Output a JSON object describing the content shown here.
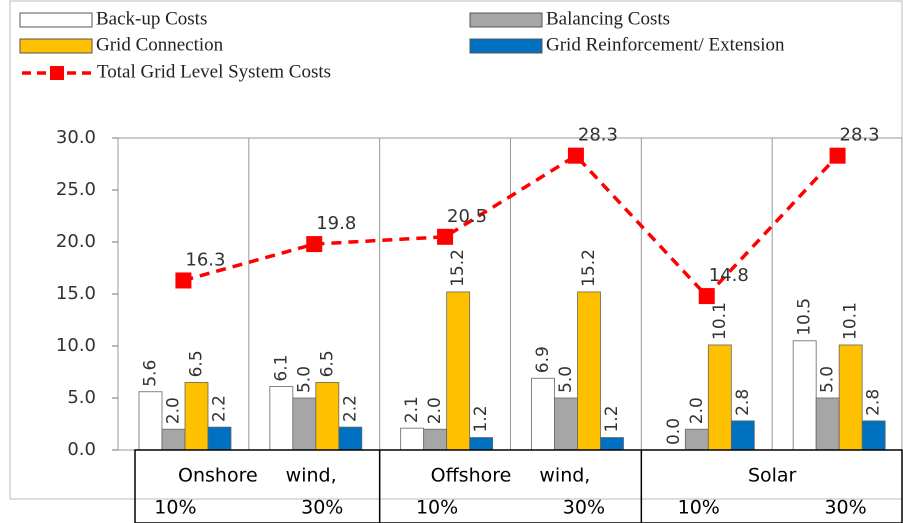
{
  "chart_data": {
    "type": "bar",
    "categories": [
      "10%",
      "30%",
      "10%",
      "30%",
      "10%",
      "30%"
    ],
    "groups": [
      "Onshore wind,",
      "Offshore wind,",
      "Solar"
    ],
    "series": [
      {
        "name": "Back-up Costs",
        "color": "#ffffff",
        "values": [
          5.6,
          6.1,
          2.1,
          6.9,
          0.0,
          10.5
        ],
        "value_labels": [
          "5.6",
          "6.1",
          "2.1",
          "6.9",
          "0.0",
          "10.5"
        ]
      },
      {
        "name": "Balancing Costs",
        "color": "#a6a6a6",
        "values": [
          2.0,
          5.0,
          2.0,
          5.0,
          2.0,
          5.0
        ],
        "value_labels": [
          "2.0",
          "5.0",
          "2.0",
          "5.0",
          "2.0",
          "5.0"
        ]
      },
      {
        "name": "Grid Connection",
        "color": "#ffc000",
        "values": [
          6.5,
          6.5,
          15.2,
          15.2,
          10.1,
          10.1
        ],
        "value_labels": [
          "6.5",
          "6.5",
          "15.2",
          "15.2",
          "10.1",
          "10.1"
        ]
      },
      {
        "name": "Grid Reinforcement/ Extension",
        "color": "#0070c0",
        "values": [
          2.2,
          2.2,
          1.2,
          1.2,
          2.8,
          2.8
        ],
        "value_labels": [
          "2.2",
          "2.2",
          "1.2",
          "1.2",
          "2.8",
          "2.8"
        ]
      },
      {
        "name": "Total Grid Level System Costs",
        "type": "line",
        "color": "#ff0000",
        "values": [
          16.3,
          19.8,
          20.5,
          28.3,
          14.8,
          28.3
        ],
        "value_labels": [
          "16.3",
          "19.8",
          "20.5",
          "28.3",
          "14.8",
          "28.3"
        ]
      }
    ],
    "ylim": [
      0,
      30
    ],
    "yticks": [
      {
        "value": 0,
        "label": "0.0"
      },
      {
        "value": 5,
        "label": "5.0"
      },
      {
        "value": 10,
        "label": "10.0"
      },
      {
        "value": 15,
        "label": "15.0"
      },
      {
        "value": 20,
        "label": "20.0"
      },
      {
        "value": 25,
        "label": "25.0"
      },
      {
        "value": 30,
        "label": "30.0"
      }
    ],
    "grid": false,
    "legend": "top"
  }
}
